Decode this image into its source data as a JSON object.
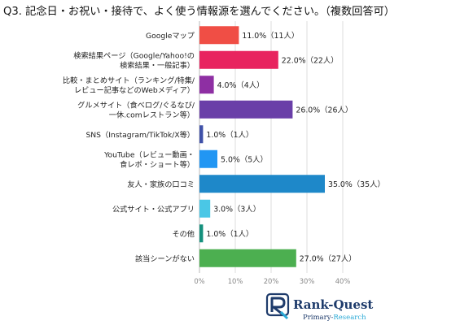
{
  "title": "Q3. 記念日・お祝い・接待で、よく使う情報源を選んでください。（複数回答可）",
  "brand": {
    "name": "Rank-Quest",
    "sub_pre": "Primary-",
    "sub_post": "Research",
    "mark": "R"
  },
  "colors": {
    "brand_navy": "#1e3b6b",
    "brand_accent": "#29a9d6",
    "grid": "#d9d9d9",
    "axis": "#bfbfbf"
  },
  "chart_data": {
    "type": "bar",
    "orientation": "horizontal",
    "title": "Q3. 記念日・お祝い・接待で、よく使う情報源を選んでください。（複数回答可）",
    "xlim": [
      0,
      40
    ],
    "ticks": [
      "0%",
      "10%",
      "20%",
      "30%",
      "40%"
    ],
    "tick_values": [
      0,
      10,
      20,
      30,
      40
    ],
    "grid": true,
    "categories": [
      [
        "Googleマップ"
      ],
      [
        "検索結果ページ（Google/Yahoo!の",
        "検索結果・一般記事）"
      ],
      [
        "比較・まとめサイト（ランキング/特集/",
        "レビュー記事などのWebメディア）"
      ],
      [
        "グルメサイト（食べログ/ぐるなび/",
        "一休.comレストラン等）"
      ],
      [
        "SNS（Instagram/TikTok/X等）"
      ],
      [
        "YouTube（レビュー動画・",
        "食レポ・ショート等）"
      ],
      [
        "友人・家族の口コミ"
      ],
      [
        "公式サイト・公式アプリ"
      ],
      [
        "その他"
      ],
      [
        "該当シーンがない"
      ]
    ],
    "values": [
      11,
      22,
      4,
      26,
      1,
      5,
      35,
      3,
      1,
      27
    ],
    "value_labels": [
      "11.0%（11人）",
      "22.0%（22人）",
      "4.0%（4人）",
      "26.0%（26人）",
      "1.0%（1人）",
      "5.0%（5人）",
      "35.0%（35人）",
      "3.0%（3人）",
      "1.0%（1人）",
      "27.0%（27人）"
    ],
    "colors": [
      "#f04e45",
      "#e8245f",
      "#8e2fa3",
      "#6a3fa8",
      "#3f51a8",
      "#2196f3",
      "#1e88c9",
      "#4ac7e6",
      "#15907d",
      "#4caf50"
    ]
  }
}
